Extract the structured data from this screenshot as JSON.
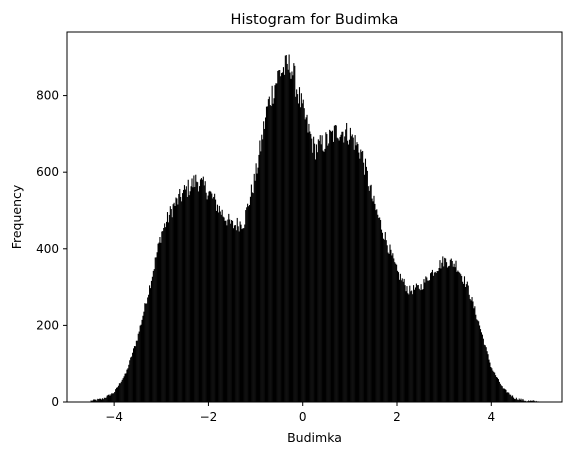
{
  "chart_data": {
    "type": "bar",
    "title": "Histogram for Budimka",
    "xlabel": "Budimka",
    "ylabel": "Frequency",
    "xlim": [
      -5.0,
      5.5
    ],
    "ylim": [
      0,
      966
    ],
    "xticks": [
      -4,
      -2,
      0,
      2,
      4
    ],
    "xtick_labels": [
      "−4",
      "−2",
      "0",
      "2",
      "4"
    ],
    "yticks": [
      0,
      200,
      400,
      600,
      800
    ],
    "ytick_labels": [
      "0",
      "200",
      "400",
      "600",
      "800"
    ],
    "bar_color": "#000000",
    "grid": false,
    "legend": false,
    "bins": {
      "x": [
        -4.5,
        -4.25,
        -4.0,
        -3.75,
        -3.5,
        -3.25,
        -3.0,
        -2.75,
        -2.5,
        -2.25,
        -2.0,
        -1.75,
        -1.5,
        -1.25,
        -1.0,
        -0.75,
        -0.5,
        -0.25,
        0.0,
        0.25,
        0.5,
        0.75,
        1.0,
        1.25,
        1.5,
        1.75,
        2.0,
        2.25,
        2.5,
        2.75,
        3.0,
        3.25,
        3.5,
        3.75,
        4.0,
        4.25,
        4.5,
        4.75,
        5.0
      ],
      "counts": [
        3,
        8,
        25,
        75,
        170,
        300,
        440,
        510,
        550,
        580,
        550,
        500,
        460,
        470,
        590,
        770,
        860,
        880,
        760,
        660,
        680,
        710,
        700,
        650,
        520,
        430,
        340,
        290,
        300,
        340,
        370,
        360,
        300,
        200,
        90,
        35,
        10,
        3,
        1
      ]
    }
  }
}
